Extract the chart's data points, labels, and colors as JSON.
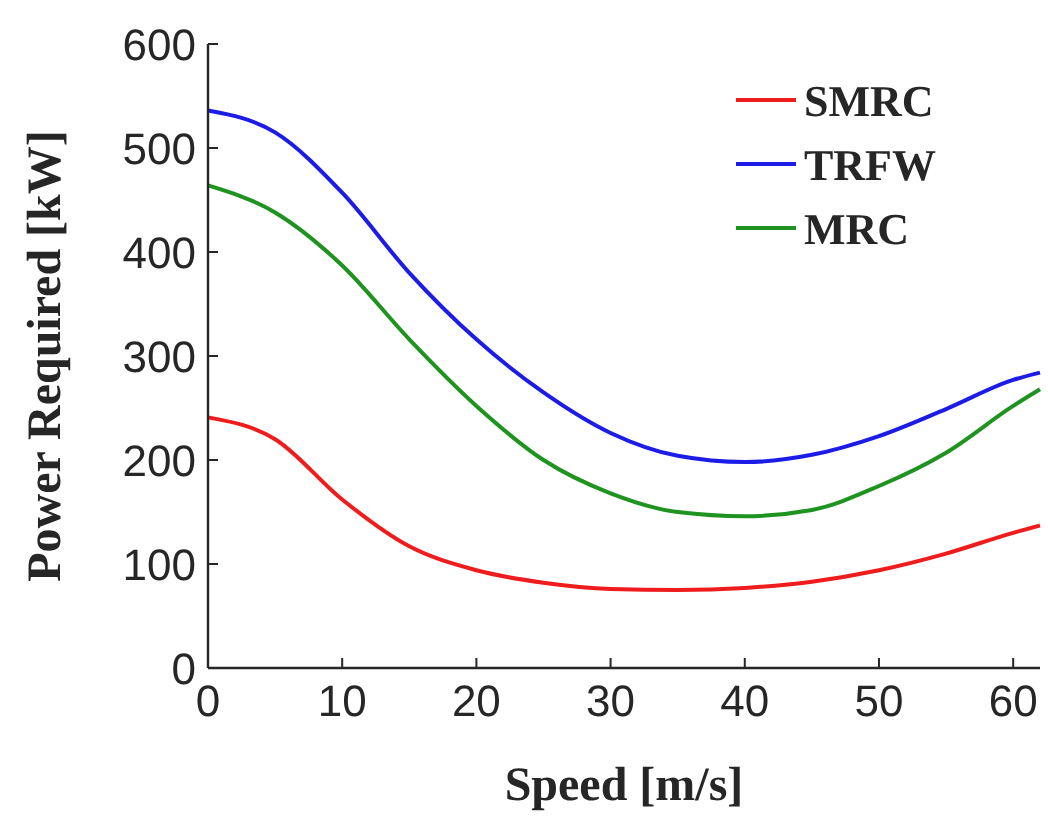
{
  "chart_data": {
    "type": "line",
    "xlabel": "Speed [m/s]",
    "ylabel": "Power Required [kW]",
    "xlim": [
      0,
      62
    ],
    "xticks": [
      0,
      10,
      20,
      30,
      40,
      50,
      60
    ],
    "ylim": [
      0,
      600
    ],
    "yticks": [
      0,
      100,
      200,
      300,
      400,
      500,
      600
    ],
    "legend": "top right",
    "grid": false,
    "x": [
      0,
      5,
      10,
      15,
      20,
      25,
      30,
      35,
      40,
      45,
      50,
      55,
      60,
      62
    ],
    "series": [
      {
        "name": "SMRC",
        "color": "#ee1c1c",
        "values": [
          241,
          220,
          162,
          117,
          94,
          82,
          76,
          75,
          77,
          83,
          94,
          110,
          130,
          137
        ]
      },
      {
        "name": "TRFW",
        "color": "#1c1ce6",
        "values": [
          536,
          515,
          457,
          380,
          316,
          265,
          226,
          204,
          198,
          205,
          223,
          249,
          277,
          284
        ]
      },
      {
        "name": "MRC",
        "color": "#1f931f",
        "values": [
          464,
          438,
          387,
          316,
          252,
          200,
          168,
          150,
          146,
          152,
          175,
          207,
          252,
          268
        ]
      }
    ]
  }
}
